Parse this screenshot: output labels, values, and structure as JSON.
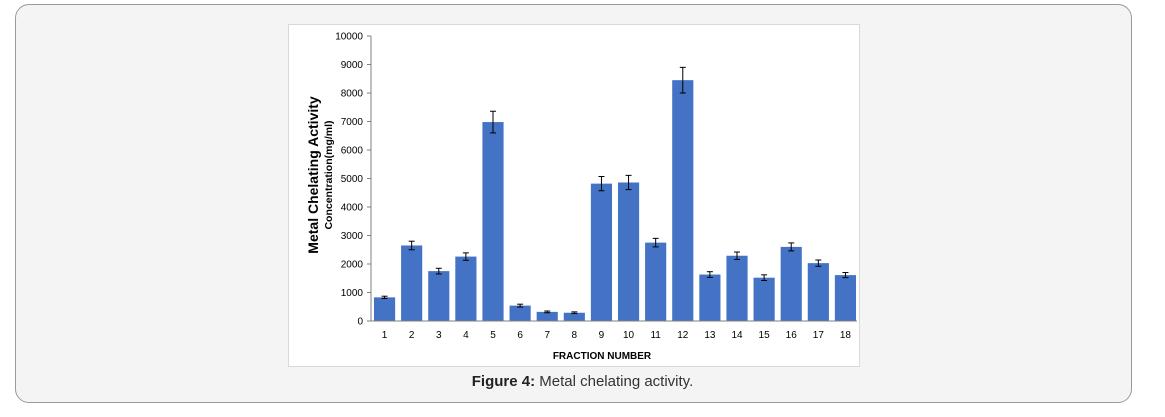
{
  "figure": {
    "caption_label": "Figure 4:",
    "caption_text": " Metal chelating activity."
  },
  "chart_data": {
    "type": "bar",
    "categories": [
      "1",
      "2",
      "3",
      "4",
      "5",
      "6",
      "7",
      "8",
      "9",
      "10",
      "11",
      "12",
      "13",
      "14",
      "15",
      "16",
      "17",
      "18"
    ],
    "values": [
      830,
      2650,
      1750,
      2260,
      6980,
      540,
      320,
      290,
      4820,
      4860,
      2750,
      8450,
      1630,
      2290,
      1520,
      2600,
      2030,
      1610
    ],
    "errors": [
      40,
      150,
      100,
      130,
      380,
      50,
      30,
      30,
      250,
      250,
      150,
      450,
      100,
      130,
      100,
      140,
      110,
      90
    ],
    "title": "",
    "xlabel": "FRACTION NUMBER",
    "ylabel_line1": "Metal Chelating Activity",
    "ylabel_line2": "Concentration(mg/ml)",
    "ylim": [
      0,
      10000
    ],
    "yticks": [
      "0",
      "1000",
      "2000",
      "3000",
      "4000",
      "5000",
      "6000",
      "7000",
      "8000",
      "9000",
      "10000"
    ],
    "bar_color": "#4472c4",
    "grid": false
  }
}
